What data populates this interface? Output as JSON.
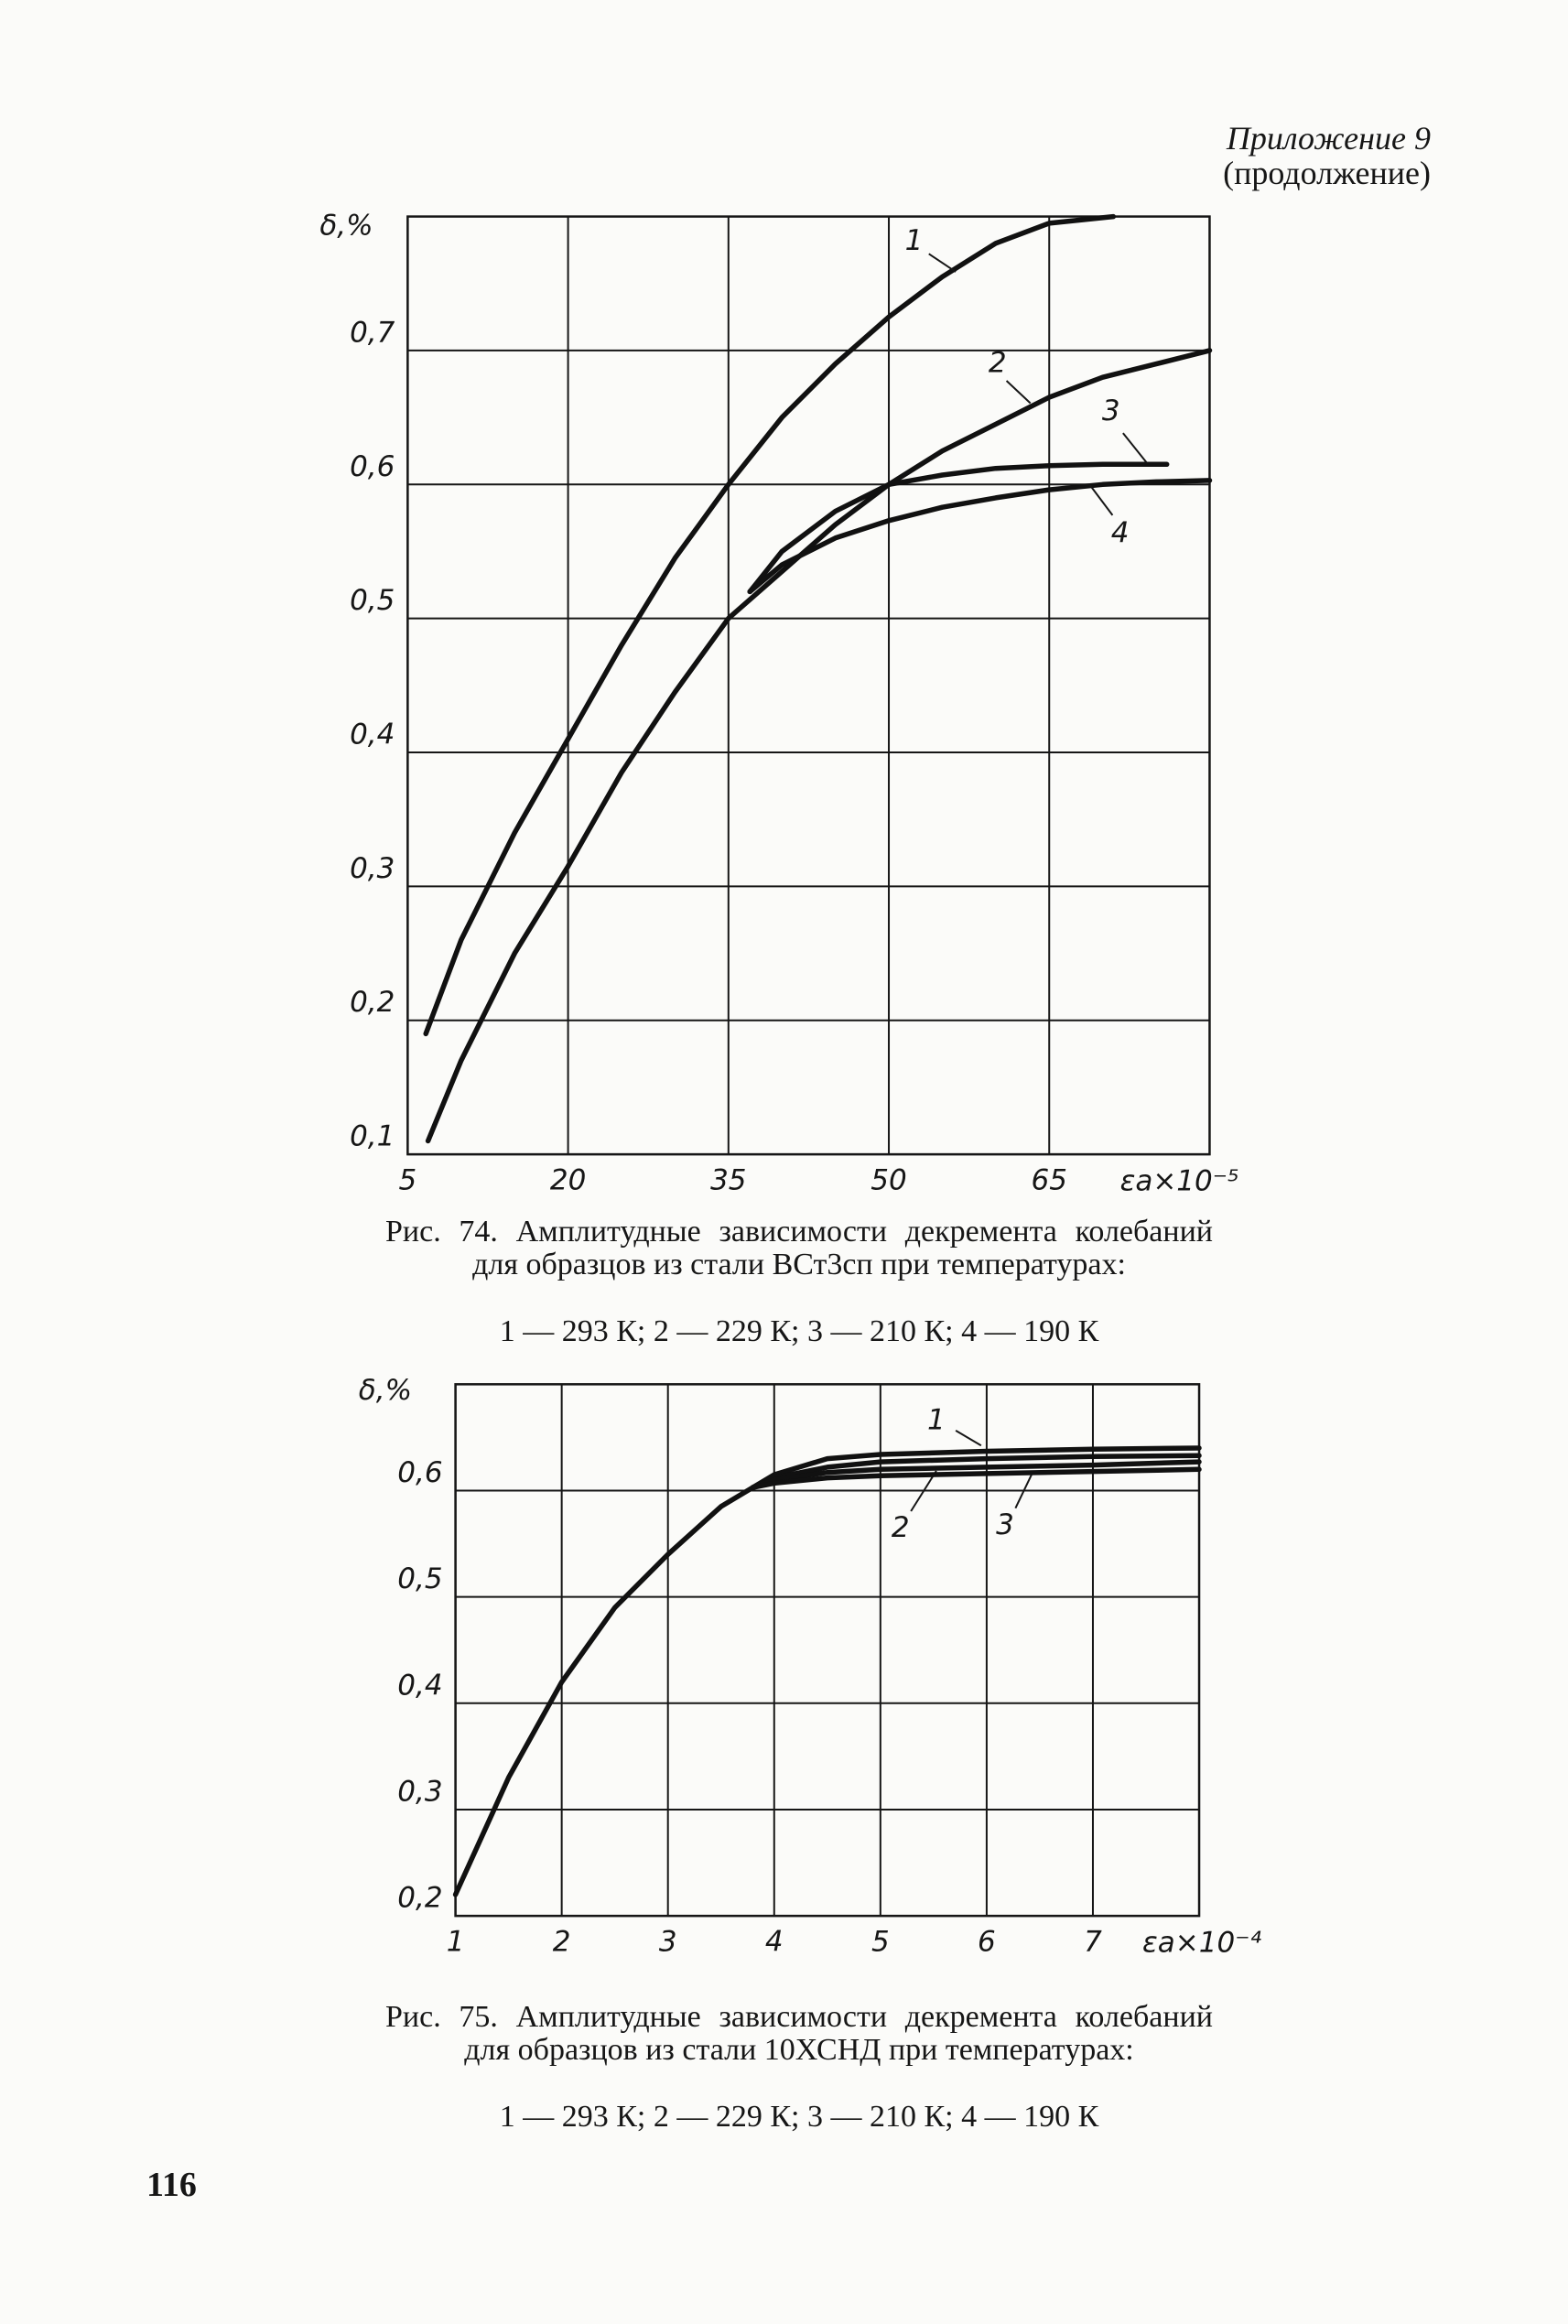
{
  "header": {
    "title": "Приложение 9",
    "subtitle": "(продолжение)"
  },
  "page_number": "116",
  "chart_data": [
    {
      "type": "line",
      "y_label": "δ,%",
      "x_label": "εa×10⁻⁵",
      "caption": "Рис. 74. Амплитудные зависимости декремента колебаний для образцов из стали ВСт3сп при температурах:",
      "legend_caption": "1 — 293 К; 2 — 229 К; 3 — 210 К; 4 — 190 К",
      "xlim": [
        5,
        80
      ],
      "ylim": [
        0.1,
        0.8
      ],
      "xticks": [
        5,
        20,
        35,
        50,
        65
      ],
      "yticks": [
        {
          "value": 0.1,
          "label": "0,1"
        },
        {
          "value": 0.2,
          "label": "0,2"
        },
        {
          "value": 0.3,
          "label": "0,3"
        },
        {
          "value": 0.4,
          "label": "0,4"
        },
        {
          "value": 0.5,
          "label": "0,5"
        },
        {
          "value": 0.6,
          "label": "0,6"
        },
        {
          "value": 0.7,
          "label": "0,7"
        }
      ],
      "grid": true,
      "series": [
        {
          "name": "1",
          "color": "#111111",
          "x": [
            6.7,
            10,
            15,
            20,
            25,
            30,
            35,
            40,
            45,
            50,
            55,
            60,
            65,
            71
          ],
          "values": [
            0.19,
            0.26,
            0.34,
            0.41,
            0.48,
            0.545,
            0.6,
            0.65,
            0.69,
            0.725,
            0.755,
            0.78,
            0.795,
            0.8
          ]
        },
        {
          "name": "2",
          "color": "#111111",
          "x": [
            6.9,
            10,
            15,
            20,
            25,
            30,
            35,
            40,
            45,
            50,
            55,
            60,
            65,
            70,
            75,
            80
          ],
          "values": [
            0.11,
            0.17,
            0.25,
            0.315,
            0.385,
            0.445,
            0.5,
            0.535,
            0.57,
            0.6,
            0.625,
            0.645,
            0.665,
            0.68,
            0.69,
            0.7
          ]
        },
        {
          "name": "3",
          "color": "#111111",
          "x": [
            37,
            40,
            45,
            50,
            55,
            60,
            65,
            70,
            76
          ],
          "values": [
            0.52,
            0.55,
            0.58,
            0.6,
            0.607,
            0.612,
            0.614,
            0.615,
            0.615
          ]
        },
        {
          "name": "4",
          "color": "#111111",
          "x": [
            37,
            40,
            45,
            50,
            55,
            60,
            65,
            70,
            75,
            80
          ],
          "values": [
            0.52,
            0.54,
            0.56,
            0.573,
            0.583,
            0.59,
            0.596,
            0.6,
            0.602,
            0.603
          ]
        }
      ]
    },
    {
      "type": "line",
      "y_label": "δ,%",
      "x_label": "εa×10⁻⁴",
      "caption": "Рис. 75. Амплитудные зависимости декремента колебаний для образцов из стали 10ХСНД при температурах:",
      "legend_caption": "1 — 293 К; 2 — 229 К; 3 — 210 К; 4 — 190 К",
      "xlim": [
        1,
        8
      ],
      "ylim": [
        0.2,
        0.7
      ],
      "xticks": [
        1,
        2,
        3,
        4,
        5,
        6,
        7
      ],
      "yticks": [
        {
          "value": 0.2,
          "label": "0,2"
        },
        {
          "value": 0.3,
          "label": "0,3"
        },
        {
          "value": 0.4,
          "label": "0,4"
        },
        {
          "value": 0.5,
          "label": "0,5"
        },
        {
          "value": 0.6,
          "label": "0,6"
        }
      ],
      "grid": true,
      "series": [
        {
          "name": "1",
          "color": "#111111",
          "x": [
            1,
            1.5,
            2,
            2.5,
            3,
            3.5,
            3.8,
            4,
            4.5,
            5,
            6,
            7,
            8
          ],
          "values": [
            0.22,
            0.33,
            0.42,
            0.49,
            0.54,
            0.585,
            0.603,
            0.615,
            0.63,
            0.634,
            0.637,
            0.639,
            0.64
          ]
        },
        {
          "name": "2",
          "color": "#111111",
          "x": [
            3.8,
            4,
            4.5,
            5,
            6,
            7,
            8
          ],
          "values": [
            0.603,
            0.612,
            0.622,
            0.627,
            0.63,
            0.632,
            0.633
          ]
        },
        {
          "name": "3",
          "color": "#111111",
          "x": [
            3.8,
            4,
            4.5,
            5,
            6,
            7,
            8
          ],
          "values": [
            0.603,
            0.61,
            0.617,
            0.62,
            0.622,
            0.624,
            0.627
          ]
        },
        {
          "color": "#111111",
          "x": [
            3.8,
            4,
            4.5,
            5,
            6,
            7,
            8
          ],
          "values": [
            0.603,
            0.607,
            0.612,
            0.614,
            0.616,
            0.618,
            0.62
          ]
        }
      ]
    }
  ]
}
